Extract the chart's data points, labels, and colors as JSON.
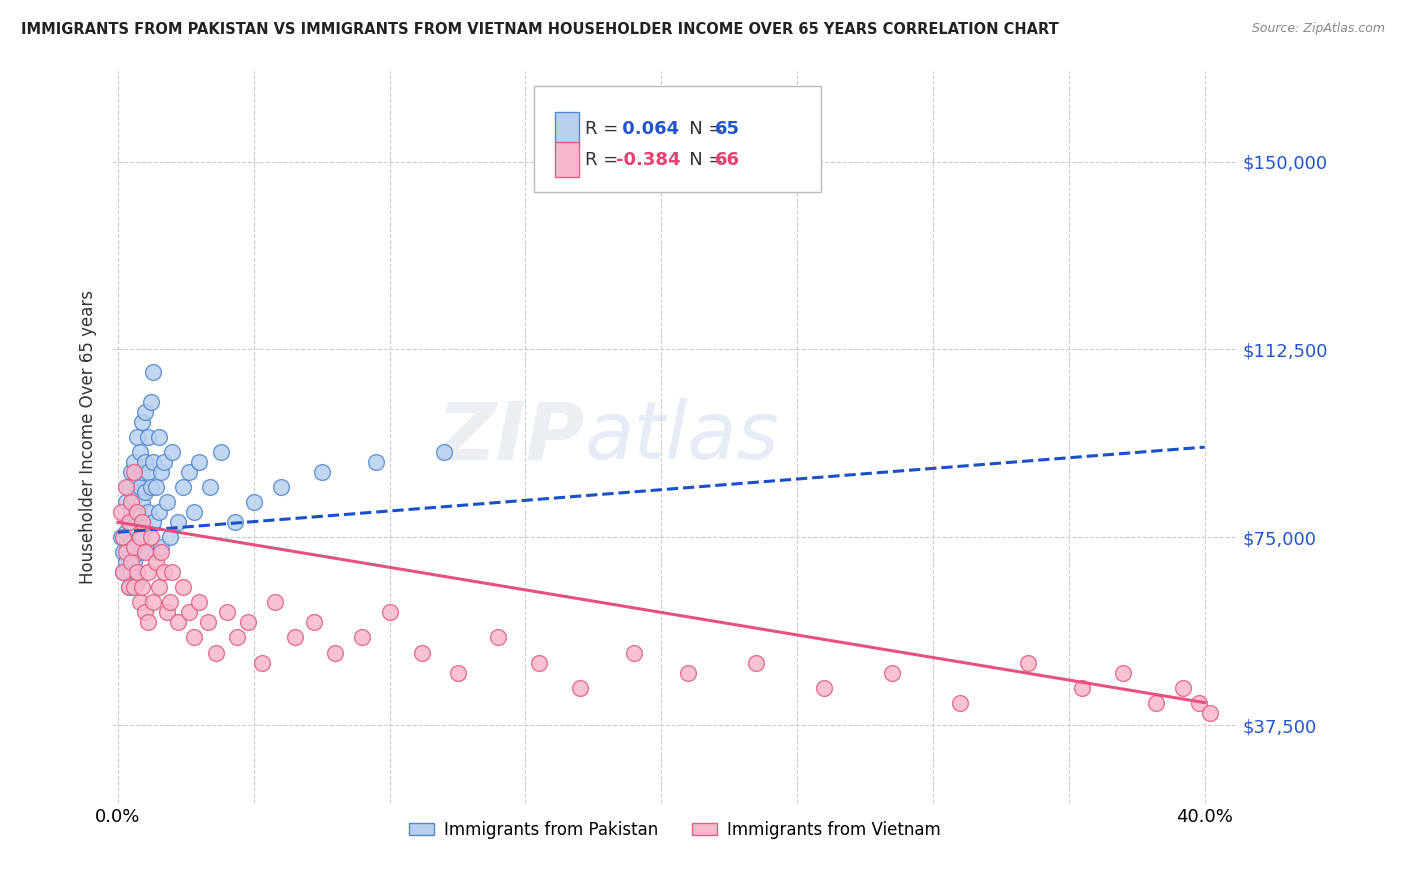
{
  "title": "IMMIGRANTS FROM PAKISTAN VS IMMIGRANTS FROM VIETNAM HOUSEHOLDER INCOME OVER 65 YEARS CORRELATION CHART",
  "source": "Source: ZipAtlas.com",
  "ylabel": "Householder Income Over 65 years",
  "xlim": [
    -0.002,
    0.412
  ],
  "ylim": [
    22000,
    168000
  ],
  "yticks": [
    37500,
    75000,
    112500,
    150000
  ],
  "ytick_labels": [
    "$37,500",
    "$75,000",
    "$112,500",
    "$150,000"
  ],
  "xticks": [
    0.0,
    0.05,
    0.1,
    0.15,
    0.2,
    0.25,
    0.3,
    0.35,
    0.4
  ],
  "pakistan_color": "#b8d0f0",
  "pakistan_edge": "#5588cc",
  "vietnam_color": "#f8b8cc",
  "vietnam_edge": "#e06080",
  "pakistan_R": 0.064,
  "pakistan_N": 65,
  "vietnam_R": -0.384,
  "vietnam_N": 66,
  "pakistan_line_color": "#1a50c8",
  "vietnam_line_color": "#e85080",
  "pakistan_line_style": "--",
  "vietnam_line_style": "-",
  "watermark": "ZIPatlas",
  "pakistan_x": [
    0.001,
    0.002,
    0.002,
    0.003,
    0.003,
    0.003,
    0.004,
    0.004,
    0.004,
    0.005,
    0.005,
    0.005,
    0.005,
    0.006,
    0.006,
    0.006,
    0.006,
    0.007,
    0.007,
    0.007,
    0.007,
    0.007,
    0.008,
    0.008,
    0.008,
    0.008,
    0.009,
    0.009,
    0.009,
    0.009,
    0.01,
    0.01,
    0.01,
    0.01,
    0.011,
    0.011,
    0.011,
    0.012,
    0.012,
    0.013,
    0.013,
    0.013,
    0.014,
    0.014,
    0.015,
    0.015,
    0.016,
    0.016,
    0.017,
    0.018,
    0.019,
    0.02,
    0.022,
    0.024,
    0.026,
    0.028,
    0.03,
    0.034,
    0.038,
    0.043,
    0.05,
    0.06,
    0.075,
    0.095,
    0.12
  ],
  "pakistan_y": [
    75000,
    72000,
    68000,
    82000,
    76000,
    70000,
    85000,
    78000,
    65000,
    88000,
    80000,
    74000,
    68000,
    90000,
    83000,
    77000,
    70000,
    95000,
    87000,
    80000,
    73000,
    66000,
    92000,
    85000,
    79000,
    72000,
    98000,
    88000,
    82000,
    75000,
    100000,
    90000,
    84000,
    77000,
    95000,
    88000,
    80000,
    102000,
    85000,
    108000,
    90000,
    78000,
    85000,
    72000,
    95000,
    80000,
    88000,
    73000,
    90000,
    82000,
    75000,
    92000,
    78000,
    85000,
    88000,
    80000,
    90000,
    85000,
    92000,
    78000,
    82000,
    85000,
    88000,
    90000,
    92000
  ],
  "vietnam_x": [
    0.001,
    0.002,
    0.002,
    0.003,
    0.003,
    0.004,
    0.004,
    0.005,
    0.005,
    0.006,
    0.006,
    0.006,
    0.007,
    0.007,
    0.008,
    0.008,
    0.009,
    0.009,
    0.01,
    0.01,
    0.011,
    0.011,
    0.012,
    0.013,
    0.014,
    0.015,
    0.016,
    0.017,
    0.018,
    0.019,
    0.02,
    0.022,
    0.024,
    0.026,
    0.028,
    0.03,
    0.033,
    0.036,
    0.04,
    0.044,
    0.048,
    0.053,
    0.058,
    0.065,
    0.072,
    0.08,
    0.09,
    0.1,
    0.112,
    0.125,
    0.14,
    0.155,
    0.17,
    0.19,
    0.21,
    0.235,
    0.26,
    0.285,
    0.31,
    0.335,
    0.355,
    0.37,
    0.382,
    0.392,
    0.398,
    0.402
  ],
  "vietnam_y": [
    80000,
    75000,
    68000,
    85000,
    72000,
    78000,
    65000,
    82000,
    70000,
    88000,
    73000,
    65000,
    80000,
    68000,
    75000,
    62000,
    78000,
    65000,
    72000,
    60000,
    68000,
    58000,
    75000,
    62000,
    70000,
    65000,
    72000,
    68000,
    60000,
    62000,
    68000,
    58000,
    65000,
    60000,
    55000,
    62000,
    58000,
    52000,
    60000,
    55000,
    58000,
    50000,
    62000,
    55000,
    58000,
    52000,
    55000,
    60000,
    52000,
    48000,
    55000,
    50000,
    45000,
    52000,
    48000,
    50000,
    45000,
    48000,
    42000,
    50000,
    45000,
    48000,
    42000,
    45000,
    42000,
    40000
  ]
}
